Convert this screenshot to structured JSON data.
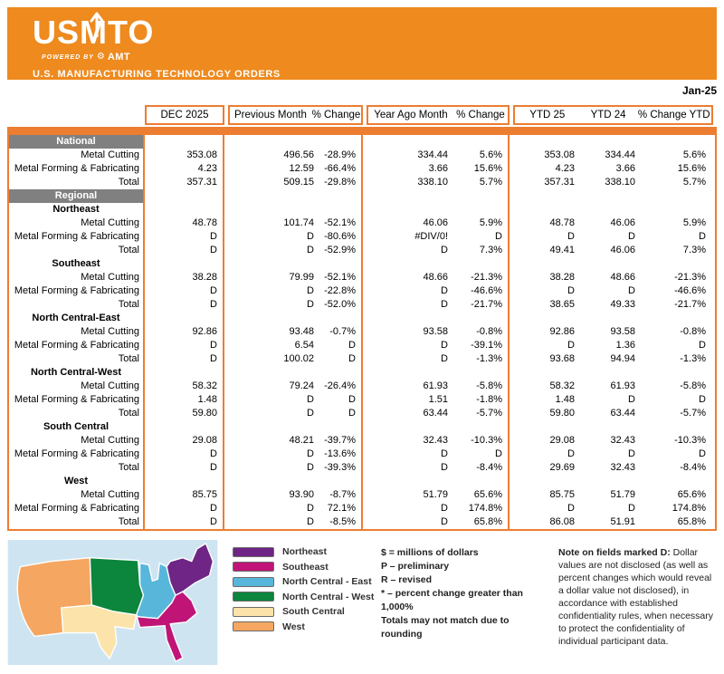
{
  "colors": {
    "banner_orange": "#EE8A1E",
    "table_orange": "#ED7D31",
    "band_gray": "#808080",
    "map_bg": "#CEE5F1"
  },
  "header": {
    "logo": "USMTO",
    "powered_by": "POWERED BY",
    "amt": "AMT",
    "subtitle": "U.S. MANUFACTURING TECHNOLOGY ORDERS",
    "date_label": "Jan-25"
  },
  "table": {
    "columns": [
      "DEC 2025",
      "Previous Month",
      "% Change",
      "Year Ago Month",
      "% Change",
      "YTD 25",
      "YTD 24",
      "% Change YTD"
    ],
    "national": {
      "band_label": "National",
      "rows": [
        {
          "label": "Metal Cutting",
          "values": [
            "353.08",
            "496.56",
            "-28.9%",
            "334.44",
            "5.6%",
            "353.08",
            "334.44",
            "5.6%"
          ]
        },
        {
          "label": "Metal Forming & Fabricating",
          "values": [
            "4.23",
            "12.59",
            "-66.4%",
            "3.66",
            "15.6%",
            "4.23",
            "3.66",
            "15.6%"
          ]
        },
        {
          "label": "Total",
          "values": [
            "357.31",
            "509.15",
            "-29.8%",
            "338.10",
            "5.7%",
            "357.31",
            "338.10",
            "5.7%"
          ]
        }
      ]
    },
    "regional": {
      "band_label": "Regional",
      "regions": [
        {
          "name": "Northeast",
          "rows": [
            {
              "label": "Metal Cutting",
              "values": [
                "48.78",
                "101.74",
                "-52.1%",
                "46.06",
                "5.9%",
                "48.78",
                "46.06",
                "5.9%"
              ]
            },
            {
              "label": "Metal Forming & Fabricating",
              "values": [
                "D",
                "D",
                "-80.6%",
                "#DIV/0!",
                "D",
                "D",
                "D",
                "D"
              ]
            },
            {
              "label": "Total",
              "values": [
                "D",
                "D",
                "-52.9%",
                "D",
                "7.3%",
                "49.41",
                "46.06",
                "7.3%"
              ]
            }
          ]
        },
        {
          "name": "Southeast",
          "rows": [
            {
              "label": "Metal Cutting",
              "values": [
                "38.28",
                "79.99",
                "-52.1%",
                "48.66",
                "-21.3%",
                "38.28",
                "48.66",
                "-21.3%"
              ]
            },
            {
              "label": "Metal Forming & Fabricating",
              "values": [
                "D",
                "D",
                "-22.8%",
                "D",
                "-46.6%",
                "D",
                "D",
                "-46.6%"
              ]
            },
            {
              "label": "Total",
              "values": [
                "D",
                "D",
                "-52.0%",
                "D",
                "-21.7%",
                "38.65",
                "49.33",
                "-21.7%"
              ]
            }
          ]
        },
        {
          "name": "North Central-East",
          "rows": [
            {
              "label": "Metal Cutting",
              "values": [
                "92.86",
                "93.48",
                "-0.7%",
                "93.58",
                "-0.8%",
                "92.86",
                "93.58",
                "-0.8%"
              ]
            },
            {
              "label": "Metal Forming & Fabricating",
              "values": [
                "D",
                "6.54",
                "D",
                "D",
                "-39.1%",
                "D",
                "1.36",
                "D"
              ]
            },
            {
              "label": "Total",
              "values": [
                "D",
                "100.02",
                "D",
                "D",
                "-1.3%",
                "93.68",
                "94.94",
                "-1.3%"
              ]
            }
          ]
        },
        {
          "name": "North Central-West",
          "rows": [
            {
              "label": "Metal Cutting",
              "values": [
                "58.32",
                "79.24",
                "-26.4%",
                "61.93",
                "-5.8%",
                "58.32",
                "61.93",
                "-5.8%"
              ]
            },
            {
              "label": "Metal Forming & Fabricating",
              "values": [
                "1.48",
                "D",
                "D",
                "1.51",
                "-1.8%",
                "1.48",
                "D",
                "D"
              ]
            },
            {
              "label": "Total",
              "values": [
                "59.80",
                "D",
                "D",
                "63.44",
                "-5.7%",
                "59.80",
                "63.44",
                "-5.7%"
              ]
            }
          ]
        },
        {
          "name": "South Central",
          "rows": [
            {
              "label": "Metal Cutting",
              "values": [
                "29.08",
                "48.21",
                "-39.7%",
                "32.43",
                "-10.3%",
                "29.08",
                "32.43",
                "-10.3%"
              ]
            },
            {
              "label": "Metal Forming & Fabricating",
              "values": [
                "D",
                "D",
                "-13.6%",
                "D",
                "D",
                "D",
                "D",
                "D"
              ]
            },
            {
              "label": "Total",
              "values": [
                "D",
                "D",
                "-39.3%",
                "D",
                "-8.4%",
                "29.69",
                "32.43",
                "-8.4%"
              ]
            }
          ]
        },
        {
          "name": "West",
          "rows": [
            {
              "label": "Metal Cutting",
              "values": [
                "85.75",
                "93.90",
                "-8.7%",
                "51.79",
                "65.6%",
                "85.75",
                "51.79",
                "65.6%"
              ]
            },
            {
              "label": "Metal Forming & Fabricating",
              "values": [
                "D",
                "D",
                "72.1%",
                "D",
                "174.8%",
                "D",
                "D",
                "174.8%"
              ]
            },
            {
              "label": "Total",
              "values": [
                "D",
                "D",
                "-8.5%",
                "D",
                "65.8%",
                "86.08",
                "51.91",
                "65.8%"
              ]
            }
          ]
        }
      ]
    }
  },
  "legend": [
    {
      "label": "Northeast",
      "color": "#6E2585"
    },
    {
      "label": "Southeast",
      "color": "#C01577"
    },
    {
      "label": "North Central - East",
      "color": "#58B6DB"
    },
    {
      "label": "North Central - West",
      "color": "#0C853D"
    },
    {
      "label": "South Central",
      "color": "#FCE3A9"
    },
    {
      "label": "West",
      "color": "#F5A661"
    }
  ],
  "notes": [
    "$ = millions of dollars",
    "P – preliminary",
    "R – revised",
    "* – percent change greater than 1,000%",
    "Totals may not match due to rounding"
  ],
  "d_note": {
    "bold": "Note on fields marked D:",
    "text": " Dollar values are not disclosed (as well as percent changes which would reveal a dollar value not disclosed), in accordance with established confidentiality rules, when necessary to protect the confidentiality of individual participant data."
  }
}
